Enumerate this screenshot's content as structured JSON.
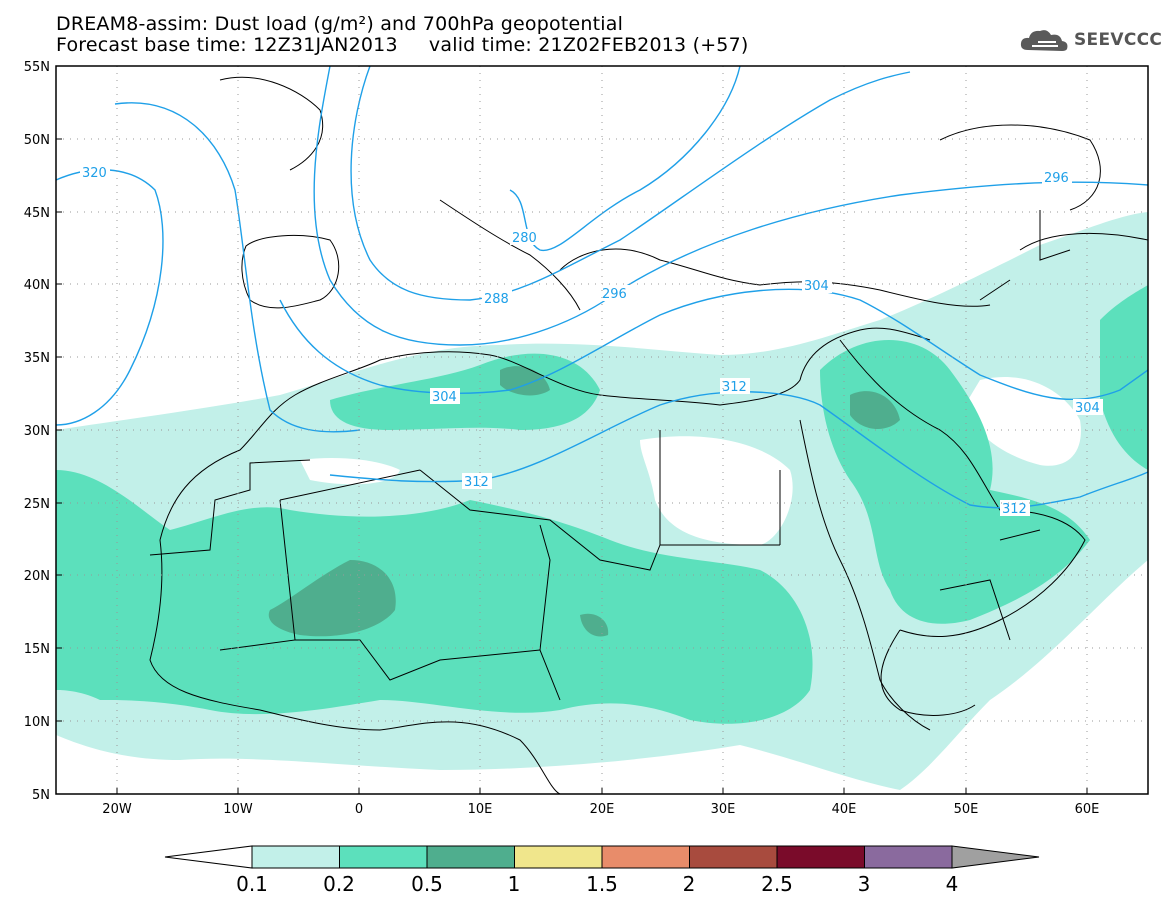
{
  "title": {
    "line1": "DREAM8-assim: Dust load (g/m²) and 700hPa geopotential",
    "line2": "Forecast base time: 12Z31JAN2013     valid time: 21Z02FEB2013 (+57)"
  },
  "brand": {
    "name": "SEEVCCC",
    "icon": "cloud-logo-icon"
  },
  "map": {
    "lon_range": [
      -25,
      65
    ],
    "lat_range": [
      5,
      55
    ],
    "lat_labels": [
      "55N",
      "50N",
      "45N",
      "40N",
      "35N",
      "30N",
      "25N",
      "20N",
      "15N",
      "10N",
      "5N"
    ],
    "lon_labels": [
      "20W",
      "10W",
      "0",
      "10E",
      "20E",
      "30E",
      "40E",
      "50E",
      "60E"
    ],
    "contour_labels": [
      "320",
      "280",
      "288",
      "296",
      "304",
      "296",
      "304",
      "312",
      "304",
      "312",
      "312"
    ],
    "contour_color": "#1fa0e8"
  },
  "colorbar": {
    "labels": [
      "0.1",
      "0.2",
      "0.5",
      "1",
      "1.5",
      "2",
      "2.5",
      "3",
      "4"
    ],
    "colors": [
      "#c2f0e9",
      "#5ce0bc",
      "#4fae8e",
      "#f0e68c",
      "#e88c6a",
      "#a84b3e",
      "#7a0b2a",
      "#8a6a9e",
      "#a0a0a0"
    ],
    "min_color": "#ffffff",
    "max_color": "#a0a0a0"
  }
}
